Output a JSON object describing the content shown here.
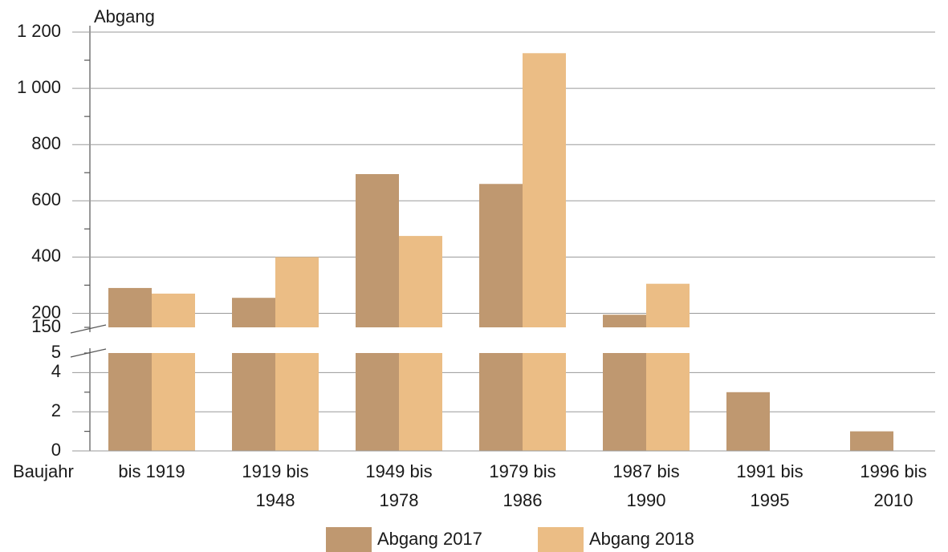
{
  "chart_data": {
    "type": "bar",
    "y_label": "Abgang",
    "x_label": "Baujahr",
    "categories": [
      "bis 1919",
      "1919 bis 1948",
      "1949 bis 1978",
      "1979 bis 1986",
      "1987 bis 1990",
      "1991 bis 1995",
      "1996 bis 2010"
    ],
    "series": [
      {
        "name": "Abgang 2017",
        "color": "#bf9870",
        "values": [
          290,
          255,
          695,
          660,
          195,
          3,
          1
        ]
      },
      {
        "name": "Abgang 2018",
        "color": "#ebbd85",
        "values": [
          270,
          400,
          475,
          1125,
          305,
          0,
          0
        ]
      }
    ],
    "segments": [
      {
        "ylim": [
          0,
          5
        ],
        "yticks": [
          0,
          2,
          4,
          5
        ],
        "yminorticks": [
          1,
          3
        ]
      },
      {
        "ylim": [
          150,
          1200
        ],
        "yticks": [
          150,
          200,
          400,
          600,
          800,
          {
            "value": 1000,
            "label": "1 000"
          },
          {
            "value": 1200,
            "label": "1 200"
          }
        ],
        "yminorticks": [
          300,
          500,
          700,
          900,
          1100
        ]
      }
    ],
    "grid": true,
    "legend": "bottom"
  }
}
